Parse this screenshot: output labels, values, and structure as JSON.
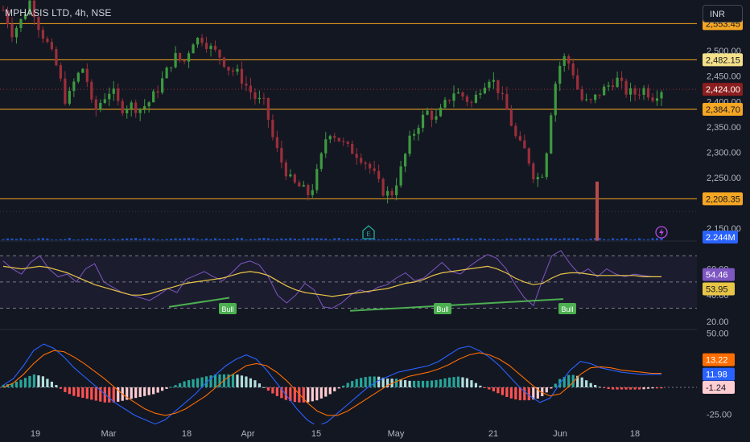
{
  "header": {
    "title": "MPHASIS LTD, 4h, NSE",
    "currency_button": "INR"
  },
  "colors": {
    "background": "#131722",
    "up": "#26a69a",
    "down": "#ef5350",
    "candle_up": "#3d9a3f",
    "candle_down": "#9b2f3a",
    "level_line": "#f5a623",
    "rsi_line": "#7e57c2",
    "rsi_ma": "#e8c546",
    "macd_line": "#2962ff",
    "signal_line": "#ff6d00"
  },
  "chart_data": [
    {
      "type": "candlestick",
      "panel": "price",
      "symbol": "MPHASIS LTD",
      "interval": "4h",
      "exchange": "NSE",
      "ylim": [
        2125,
        2600
      ],
      "y_ticks": [
        "2,500.00",
        "2,450.00",
        "2,400.00",
        "2,350.00",
        "2,300.00",
        "2,250.00",
        "2,150.00"
      ],
      "y_tick_values": [
        2500,
        2450,
        2400,
        2350,
        2300,
        2250,
        2150
      ],
      "x_ticks": [
        "19",
        "Mar",
        "18",
        "Apr",
        "15",
        "May",
        "21",
        "Jun",
        "18"
      ],
      "levels": [
        {
          "value": 2553.45,
          "label": "2,553.45"
        },
        {
          "value": 2482.15,
          "label": "2,482.15"
        },
        {
          "value": 2384.7,
          "label": "2,384.70"
        },
        {
          "value": 2208.35,
          "label": "2,208.35"
        }
      ],
      "last_price": {
        "value": 2424.0,
        "label": "2,424.00"
      },
      "volume_label": "2.244M",
      "close_path": [
        2580,
        2535,
        2560,
        2600,
        2545,
        2510,
        2465,
        2395,
        2445,
        2470,
        2375,
        2405,
        2425,
        2385,
        2395,
        2385,
        2395,
        2420,
        2455,
        2490,
        2475,
        2520,
        2525,
        2505,
        2490,
        2465,
        2455,
        2430,
        2405,
        2395,
        2320,
        2275,
        2240,
        2230,
        2215,
        2270,
        2345,
        2330,
        2310,
        2300,
        2285,
        2260,
        2225,
        2215,
        2260,
        2320,
        2355,
        2380,
        2365,
        2395,
        2420,
        2410,
        2395,
        2430,
        2450,
        2420,
        2375,
        2320,
        2300,
        2245,
        2265,
        2420,
        2490,
        2470,
        2405,
        2395,
        2415,
        2430,
        2445,
        2420,
        2415,
        2425,
        2410,
        2424
      ]
    },
    {
      "type": "line",
      "panel": "rsi",
      "ylim": [
        15,
        80
      ],
      "y_ticks": [
        "60.00",
        "40.00",
        "20.00"
      ],
      "y_tick_values": [
        60,
        40,
        20
      ],
      "bands": [
        70,
        50,
        30
      ],
      "series": [
        {
          "role": "rsi",
          "last_label": "54.46",
          "values": [
            66,
            60,
            56,
            65,
            70,
            60,
            54,
            56,
            50,
            60,
            64,
            50,
            46,
            42,
            40,
            38,
            36,
            40,
            45,
            42,
            52,
            55,
            58,
            54,
            51,
            57,
            64,
            66,
            63,
            54,
            40,
            34,
            40,
            49,
            44,
            31,
            30,
            34,
            40,
            44,
            42,
            46,
            48,
            53,
            57,
            51,
            53,
            59,
            65,
            58,
            56,
            62,
            67,
            71,
            68,
            60,
            48,
            38,
            32,
            52,
            70,
            74,
            64,
            56,
            60,
            54,
            60,
            56,
            54,
            56,
            55,
            54,
            54
          ]
        },
        {
          "role": "rsi-ma",
          "last_label": "53.95",
          "values": [
            62,
            61,
            60,
            61,
            62,
            61,
            59,
            57,
            54,
            51,
            48,
            46,
            44,
            42,
            40,
            40,
            41,
            43,
            45,
            47,
            49,
            50,
            51,
            52,
            53,
            55,
            57,
            58,
            57,
            55,
            51,
            47,
            44,
            42,
            41,
            40,
            39,
            40,
            41,
            42,
            43,
            44,
            45,
            47,
            49,
            50,
            52,
            55,
            57,
            58,
            59,
            60,
            61,
            62,
            60,
            57,
            53,
            50,
            48,
            49,
            53,
            56,
            57,
            57,
            56,
            55,
            55,
            55,
            55,
            55,
            54,
            54,
            54
          ]
        }
      ],
      "annotations": [
        "Bull",
        "Bull",
        "Bull"
      ]
    },
    {
      "type": "bar",
      "panel": "macd",
      "ylim": [
        -32,
        52
      ],
      "y_ticks": [
        "50.00",
        "-25.00"
      ],
      "y_tick_values": [
        50,
        -25
      ],
      "series": [
        {
          "role": "macd",
          "last_label": "11.98",
          "values": [
            2,
            8,
            20,
            34,
            40,
            36,
            28,
            18,
            10,
            2,
            -6,
            -14,
            -20,
            -26,
            -30,
            -34,
            -30,
            -22,
            -14,
            -6,
            4,
            12,
            20,
            26,
            30,
            26,
            16,
            4,
            -8,
            -20,
            -30,
            -36,
            -32,
            -24,
            -16,
            -8,
            0,
            6,
            10,
            14,
            16,
            18,
            20,
            24,
            30,
            36,
            38,
            34,
            28,
            20,
            10,
            0,
            -8,
            -14,
            -10,
            4,
            16,
            24,
            22,
            18,
            16,
            14,
            13,
            12,
            12,
            12
          ]
        },
        {
          "role": "signal",
          "last_label": "13.22",
          "values": [
            0,
            4,
            12,
            22,
            30,
            34,
            33,
            28,
            22,
            15,
            8,
            0,
            -8,
            -14,
            -20,
            -24,
            -26,
            -24,
            -20,
            -14,
            -8,
            0,
            8,
            14,
            20,
            22,
            20,
            14,
            6,
            -4,
            -14,
            -22,
            -26,
            -26,
            -22,
            -16,
            -10,
            -4,
            2,
            6,
            10,
            12,
            14,
            17,
            21,
            26,
            30,
            32,
            30,
            26,
            20,
            12,
            4,
            -4,
            -8,
            -6,
            2,
            12,
            18,
            19,
            18,
            16,
            15,
            14,
            13,
            13
          ]
        },
        {
          "role": "histogram",
          "last_label": "-1.24",
          "values": [
            2,
            4,
            8,
            12,
            10,
            4,
            -4,
            -8,
            -10,
            -12,
            -14,
            -14,
            -12,
            -10,
            -8,
            -6,
            -2,
            2,
            6,
            8,
            10,
            12,
            12,
            12,
            10,
            6,
            -2,
            -8,
            -12,
            -14,
            -14,
            -12,
            -8,
            -2,
            4,
            8,
            10,
            10,
            8,
            8,
            6,
            6,
            6,
            7,
            9,
            10,
            8,
            2,
            -2,
            -6,
            -10,
            -12,
            -12,
            -10,
            -2,
            8,
            12,
            10,
            4,
            0,
            -2,
            -2,
            -2,
            -2,
            -1,
            -1
          ]
        }
      ]
    }
  ]
}
